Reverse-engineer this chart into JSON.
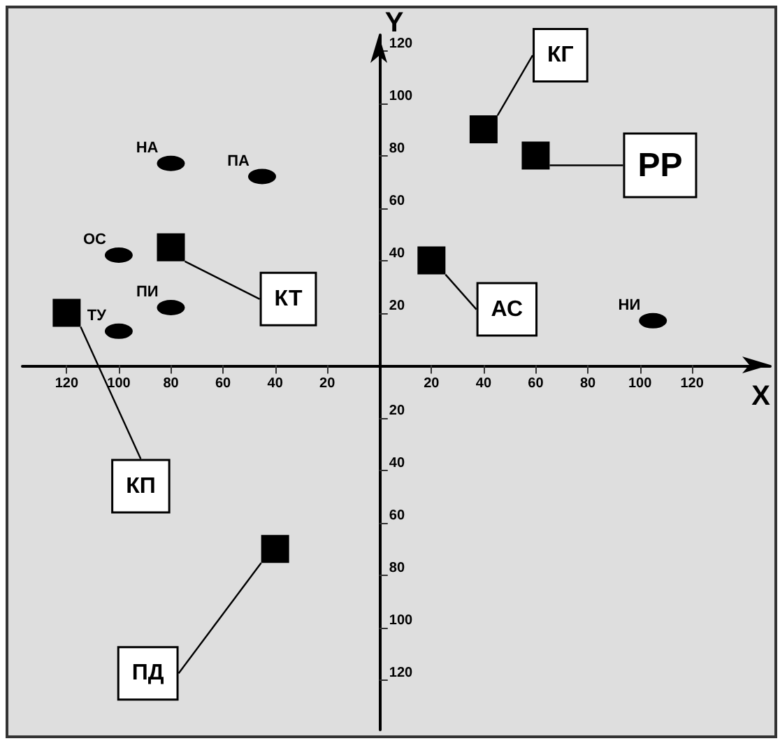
{
  "chart_data": {
    "type": "scatter",
    "xlabel": "X",
    "ylabel": "Y",
    "xlim": [
      -137,
      150
    ],
    "ylim": [
      -139,
      126
    ],
    "xticks": [
      {
        "value": -120,
        "label": "120"
      },
      {
        "value": -100,
        "label": "100"
      },
      {
        "value": -80,
        "label": "80"
      },
      {
        "value": -60,
        "label": "60"
      },
      {
        "value": -40,
        "label": "40"
      },
      {
        "value": -20,
        "label": "20"
      },
      20,
      40,
      60,
      80,
      100,
      120
    ],
    "yticks": [
      {
        "value": -120,
        "label": "120"
      },
      {
        "value": -100,
        "label": "100"
      },
      {
        "value": -80,
        "label": "80"
      },
      {
        "value": -60,
        "label": "60"
      },
      {
        "value": -40,
        "label": "40"
      },
      {
        "value": -20,
        "label": "20"
      },
      20,
      40,
      60,
      80,
      100,
      120
    ],
    "grid": false,
    "series": [
      {
        "marker": "square",
        "color": "#000000",
        "x": [
          40,
          60,
          20,
          -80,
          -120,
          -40
        ],
        "values": [
          90,
          80,
          40,
          45,
          20,
          -70
        ],
        "value_labels": [
          "КГ",
          "РР",
          "АС",
          "КТ",
          "КП",
          "ПД"
        ]
      },
      {
        "marker": "circle",
        "color": "#000000",
        "x": [
          -80,
          -45,
          -100,
          -80,
          -100,
          105
        ],
        "values": [
          77,
          72,
          42,
          22,
          13,
          17
        ],
        "value_labels": [
          "НА",
          "ПА",
          "ОС",
          "ПИ",
          "ТУ",
          "НИ"
        ]
      }
    ]
  }
}
